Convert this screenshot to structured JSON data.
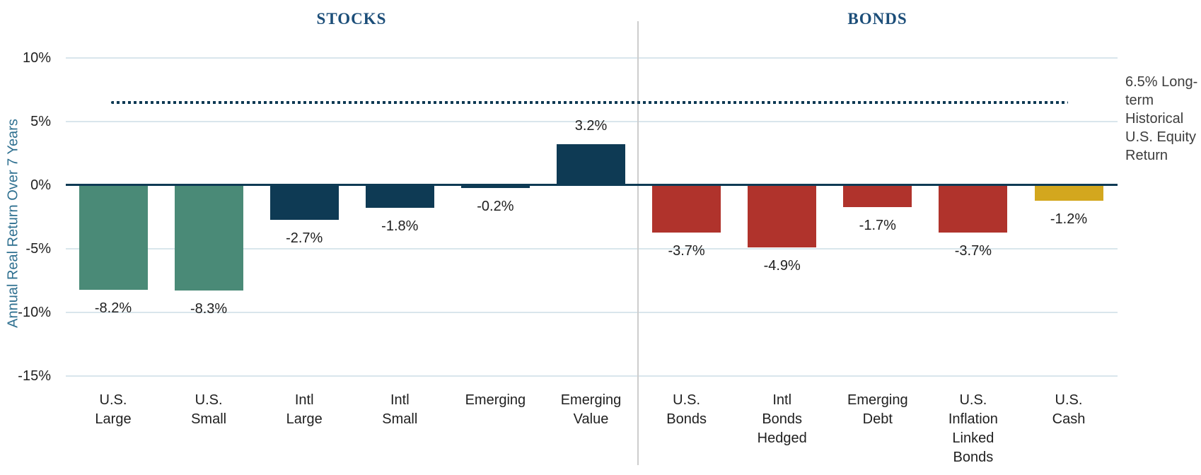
{
  "chart_data": {
    "type": "bar",
    "section_titles": {
      "left": "STOCKS",
      "right": "BONDS"
    },
    "ylabel": "Annual Real Return Over 7 Years",
    "ylim": [
      -15,
      10
    ],
    "grid": true,
    "legend": "none",
    "y_ticks": [
      {
        "value": 10,
        "label": "10%"
      },
      {
        "value": 5,
        "label": "5%"
      },
      {
        "value": 0,
        "label": "0%"
      },
      {
        "value": -5,
        "label": "-5%"
      },
      {
        "value": -10,
        "label": "-10%"
      },
      {
        "value": -15,
        "label": "-15%"
      }
    ],
    "reference_line": {
      "value": 6.5,
      "style": "dotted",
      "color": "#0E3A54",
      "annotation": "6.5% Long-term Historical U.S. Equity Return"
    },
    "bars": [
      {
        "category": "U.S. Large",
        "label_lines": [
          "U.S.",
          "Large"
        ],
        "value": -8.2,
        "display": "-8.2%",
        "color": "#4A8A77",
        "group": "stocks"
      },
      {
        "category": "U.S. Small",
        "label_lines": [
          "U.S.",
          "Small"
        ],
        "value": -8.3,
        "display": "-8.3%",
        "color": "#4A8A77",
        "group": "stocks"
      },
      {
        "category": "Intl Large",
        "label_lines": [
          "Intl",
          "Large"
        ],
        "value": -2.7,
        "display": "-2.7%",
        "color": "#0E3A54",
        "group": "stocks"
      },
      {
        "category": "Intl Small",
        "label_lines": [
          "Intl",
          "Small"
        ],
        "value": -1.8,
        "display": "-1.8%",
        "color": "#0E3A54",
        "group": "stocks"
      },
      {
        "category": "Emerging",
        "label_lines": [
          "Emerging"
        ],
        "value": -0.2,
        "display": "-0.2%",
        "color": "#0E3A54",
        "group": "stocks"
      },
      {
        "category": "Emerging Value",
        "label_lines": [
          "Emerging",
          "Value"
        ],
        "value": 3.2,
        "display": "3.2%",
        "color": "#0E3A54",
        "group": "stocks"
      },
      {
        "category": "U.S. Bonds",
        "label_lines": [
          "U.S.",
          "Bonds"
        ],
        "value": -3.7,
        "display": "-3.7%",
        "color": "#B0332C",
        "group": "bonds"
      },
      {
        "category": "Intl Bonds Hedged",
        "label_lines": [
          "Intl",
          "Bonds",
          "Hedged"
        ],
        "value": -4.9,
        "display": "-4.9%",
        "color": "#B0332C",
        "group": "bonds"
      },
      {
        "category": "Emerging Debt",
        "label_lines": [
          "Emerging",
          "Debt"
        ],
        "value": -1.7,
        "display": "-1.7%",
        "color": "#B0332C",
        "group": "bonds"
      },
      {
        "category": "U.S. Inflation Linked Bonds",
        "label_lines": [
          "U.S.",
          "Inflation",
          "Linked",
          "Bonds"
        ],
        "value": -3.7,
        "display": "-3.7%",
        "color": "#B0332C",
        "group": "bonds"
      },
      {
        "category": "U.S. Cash",
        "label_lines": [
          "U.S.",
          "Cash"
        ],
        "value": -1.2,
        "display": "-1.2%",
        "color": "#D3A71E",
        "group": "bonds"
      }
    ],
    "colors": {
      "us_stocks": "#4A8A77",
      "intl_stocks": "#0E3A54",
      "bonds": "#B0332C",
      "cash": "#D3A71E",
      "zero_axis": "#0E3A54",
      "gridline": "#D9E6EC",
      "section_divider": "#CDCDCD",
      "section_title": "#1C4E79",
      "y_axis_title": "#2F7090",
      "text": "#1F1F1F",
      "annotation_text": "#3D3D3D"
    }
  }
}
